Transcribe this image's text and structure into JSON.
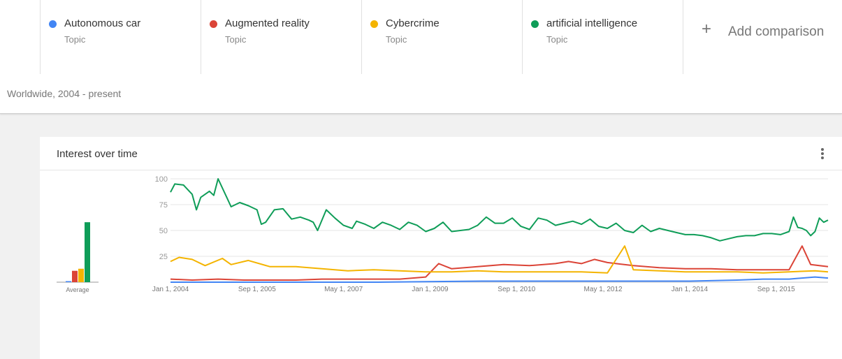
{
  "header": {
    "terms": [
      {
        "name": "Autonomous car",
        "type": "Topic",
        "color": "#4285f4"
      },
      {
        "name": "Augmented reality",
        "type": "Topic",
        "color": "#db4437"
      },
      {
        "name": "Cybercrime",
        "type": "Topic",
        "color": "#f4b400"
      },
      {
        "name": "artificial intelligence",
        "type": "Topic",
        "color": "#0f9d58"
      }
    ],
    "add_comparison": "Add comparison",
    "add_icon": "plus-icon"
  },
  "filters": {
    "region_time": "Worldwide, 2004 - present"
  },
  "card": {
    "title": "Interest over time",
    "menu_icon": "more-vert-icon"
  },
  "chart_data": {
    "type": "line",
    "title": "Interest over time",
    "ylim": [
      0,
      100
    ],
    "yticks": [
      "25",
      "50",
      "75",
      "100"
    ],
    "x_range": [
      "2004-01",
      "2016-08"
    ],
    "xticks": [
      "Jan 1, 2004",
      "Sep 1, 2005",
      "May 1, 2007",
      "Jan 1, 2009",
      "Sep 1, 2010",
      "May 1, 2012",
      "Jan 1, 2014",
      "Sep 1, 2015"
    ],
    "grid": true,
    "average_label": "Average",
    "averages": [
      {
        "name": "Autonomous car",
        "value": 1
      },
      {
        "name": "Augmented reality",
        "value": 11
      },
      {
        "name": "Cybercrime",
        "value": 13
      },
      {
        "name": "artificial intelligence",
        "value": 58
      }
    ],
    "series": [
      {
        "name": "artificial intelligence",
        "color": "#0f9d58",
        "points": [
          [
            "2004-01",
            87
          ],
          [
            "2004-02",
            95
          ],
          [
            "2004-04",
            94
          ],
          [
            "2004-06",
            85
          ],
          [
            "2004-07",
            70
          ],
          [
            "2004-08",
            82
          ],
          [
            "2004-10",
            88
          ],
          [
            "2004-11",
            84
          ],
          [
            "2004-12",
            100
          ],
          [
            "2005-02",
            82
          ],
          [
            "2005-03",
            73
          ],
          [
            "2005-05",
            77
          ],
          [
            "2005-07",
            74
          ],
          [
            "2005-09",
            70
          ],
          [
            "2005-10",
            56
          ],
          [
            "2005-11",
            58
          ],
          [
            "2006-01",
            70
          ],
          [
            "2006-03",
            71
          ],
          [
            "2006-05",
            61
          ],
          [
            "2006-07",
            63
          ],
          [
            "2006-09",
            60
          ],
          [
            "2006-10",
            58
          ],
          [
            "2006-11",
            50
          ],
          [
            "2007-01",
            70
          ],
          [
            "2007-03",
            62
          ],
          [
            "2007-05",
            55
          ],
          [
            "2007-07",
            52
          ],
          [
            "2007-08",
            59
          ],
          [
            "2007-10",
            56
          ],
          [
            "2007-12",
            52
          ],
          [
            "2008-02",
            58
          ],
          [
            "2008-04",
            55
          ],
          [
            "2008-06",
            51
          ],
          [
            "2008-08",
            58
          ],
          [
            "2008-10",
            55
          ],
          [
            "2008-12",
            49
          ],
          [
            "2009-02",
            52
          ],
          [
            "2009-04",
            58
          ],
          [
            "2009-06",
            49
          ],
          [
            "2009-08",
            50
          ],
          [
            "2009-10",
            51
          ],
          [
            "2009-12",
            55
          ],
          [
            "2010-02",
            63
          ],
          [
            "2010-04",
            57
          ],
          [
            "2010-06",
            57
          ],
          [
            "2010-08",
            62
          ],
          [
            "2010-10",
            54
          ],
          [
            "2010-12",
            51
          ],
          [
            "2011-02",
            62
          ],
          [
            "2011-04",
            60
          ],
          [
            "2011-06",
            55
          ],
          [
            "2011-08",
            57
          ],
          [
            "2011-10",
            59
          ],
          [
            "2011-12",
            56
          ],
          [
            "2012-02",
            61
          ],
          [
            "2012-04",
            54
          ],
          [
            "2012-06",
            52
          ],
          [
            "2012-08",
            57
          ],
          [
            "2012-10",
            50
          ],
          [
            "2012-12",
            48
          ],
          [
            "2013-02",
            55
          ],
          [
            "2013-04",
            49
          ],
          [
            "2013-06",
            52
          ],
          [
            "2013-08",
            50
          ],
          [
            "2013-10",
            48
          ],
          [
            "2013-12",
            46
          ],
          [
            "2014-02",
            46
          ],
          [
            "2014-04",
            45
          ],
          [
            "2014-06",
            43
          ],
          [
            "2014-08",
            40
          ],
          [
            "2014-10",
            42
          ],
          [
            "2014-12",
            44
          ],
          [
            "2015-02",
            45
          ],
          [
            "2015-04",
            45
          ],
          [
            "2015-06",
            47
          ],
          [
            "2015-08",
            47
          ],
          [
            "2015-10",
            46
          ],
          [
            "2015-12",
            49
          ],
          [
            "2016-01",
            63
          ],
          [
            "2016-02",
            53
          ],
          [
            "2016-03",
            52
          ],
          [
            "2016-04",
            50
          ],
          [
            "2016-05",
            45
          ],
          [
            "2016-06",
            49
          ],
          [
            "2016-07",
            62
          ],
          [
            "2016-08",
            58
          ],
          [
            "2016-09",
            60
          ]
        ]
      },
      {
        "name": "Augmented reality",
        "color": "#db4437",
        "points": [
          [
            "2004-01",
            3
          ],
          [
            "2004-06",
            2
          ],
          [
            "2004-12",
            3
          ],
          [
            "2005-06",
            2
          ],
          [
            "2005-12",
            2
          ],
          [
            "2006-06",
            2
          ],
          [
            "2006-12",
            3
          ],
          [
            "2007-06",
            3
          ],
          [
            "2007-12",
            3
          ],
          [
            "2008-06",
            3
          ],
          [
            "2008-12",
            5
          ],
          [
            "2009-03",
            18
          ],
          [
            "2009-06",
            13
          ],
          [
            "2009-12",
            15
          ],
          [
            "2010-06",
            17
          ],
          [
            "2010-12",
            16
          ],
          [
            "2011-06",
            18
          ],
          [
            "2011-09",
            20
          ],
          [
            "2011-12",
            18
          ],
          [
            "2012-03",
            22
          ],
          [
            "2012-06",
            19
          ],
          [
            "2012-12",
            16
          ],
          [
            "2013-06",
            14
          ],
          [
            "2013-12",
            13
          ],
          [
            "2014-06",
            13
          ],
          [
            "2014-12",
            12
          ],
          [
            "2015-06",
            12
          ],
          [
            "2015-12",
            12
          ],
          [
            "2016-03",
            35
          ],
          [
            "2016-05",
            17
          ],
          [
            "2016-09",
            15
          ]
        ]
      },
      {
        "name": "Cybercrime",
        "color": "#f4b400",
        "points": [
          [
            "2004-01",
            20
          ],
          [
            "2004-03",
            24
          ],
          [
            "2004-06",
            22
          ],
          [
            "2004-09",
            16
          ],
          [
            "2005-01",
            23
          ],
          [
            "2005-03",
            17
          ],
          [
            "2005-07",
            21
          ],
          [
            "2005-12",
            15
          ],
          [
            "2006-06",
            15
          ],
          [
            "2006-12",
            13
          ],
          [
            "2007-06",
            11
          ],
          [
            "2007-12",
            12
          ],
          [
            "2008-06",
            11
          ],
          [
            "2008-12",
            10
          ],
          [
            "2009-06",
            10
          ],
          [
            "2009-12",
            11
          ],
          [
            "2010-06",
            10
          ],
          [
            "2010-12",
            10
          ],
          [
            "2011-06",
            10
          ],
          [
            "2011-12",
            10
          ],
          [
            "2012-06",
            9
          ],
          [
            "2012-10",
            35
          ],
          [
            "2012-12",
            12
          ],
          [
            "2013-06",
            11
          ],
          [
            "2013-12",
            10
          ],
          [
            "2014-06",
            10
          ],
          [
            "2014-12",
            10
          ],
          [
            "2015-06",
            9
          ],
          [
            "2015-12",
            10
          ],
          [
            "2016-06",
            11
          ],
          [
            "2016-09",
            10
          ]
        ]
      },
      {
        "name": "Autonomous car",
        "color": "#4285f4",
        "points": [
          [
            "2004-01",
            0
          ],
          [
            "2006-01",
            0
          ],
          [
            "2008-01",
            0
          ],
          [
            "2010-01",
            1
          ],
          [
            "2012-01",
            1
          ],
          [
            "2014-01",
            1
          ],
          [
            "2014-12",
            2
          ],
          [
            "2015-06",
            3
          ],
          [
            "2015-12",
            3
          ],
          [
            "2016-06",
            5
          ],
          [
            "2016-09",
            4
          ]
        ]
      }
    ]
  }
}
